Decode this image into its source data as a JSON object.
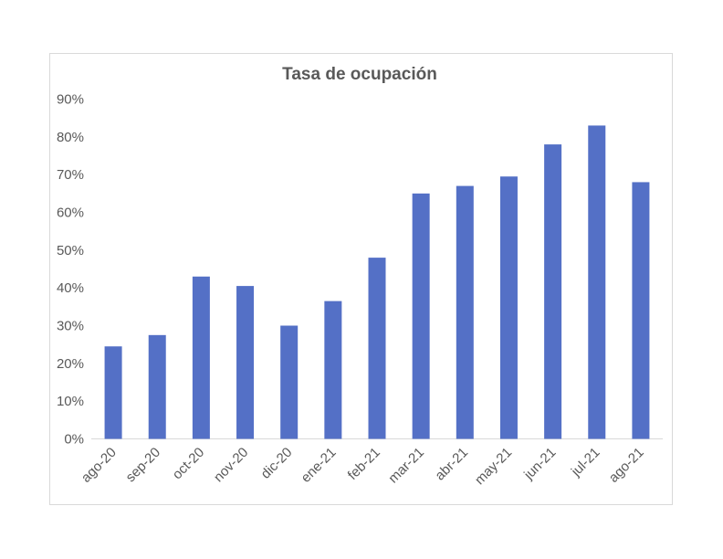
{
  "chart_data": {
    "type": "bar",
    "title": "Tasa de ocupación",
    "xlabel": "",
    "ylabel": "",
    "categories": [
      "ago-20",
      "sep-20",
      "oct-20",
      "nov-20",
      "dic-20",
      "ene-21",
      "feb-21",
      "mar-21",
      "abr-21",
      "may-21",
      "jun-21",
      "jul-21",
      "ago-21"
    ],
    "values": [
      24.5,
      27.5,
      43,
      40.5,
      30,
      36.5,
      48,
      65,
      67,
      69.5,
      78,
      83,
      68
    ],
    "y_tick_labels": [
      "0%",
      "10%",
      "20%",
      "30%",
      "40%",
      "50%",
      "60%",
      "70%",
      "80%",
      "90%"
    ],
    "ylim": [
      0,
      90
    ],
    "grid": false,
    "legend": "none",
    "bar_color": "#5470c6",
    "axis_color": "#d9d9d9",
    "text_color": "#595959"
  }
}
